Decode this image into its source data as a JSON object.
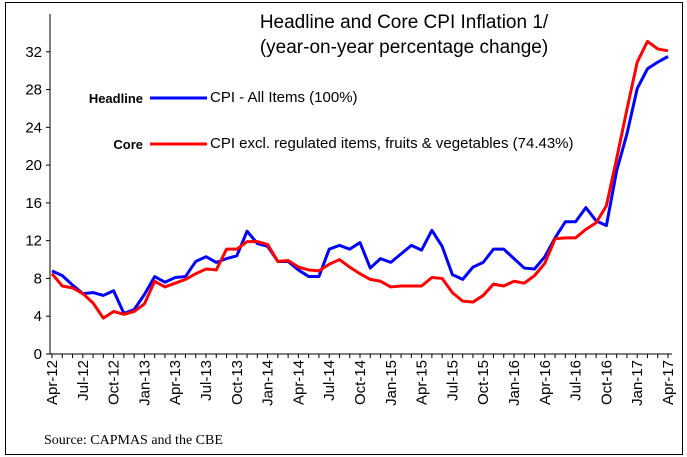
{
  "chart_data": {
    "type": "line",
    "title": "Headline and Core CPI Inflation 1/",
    "subtitle": "(year-on-year percentage change)",
    "source": "Source: CAPMAS and the CBE",
    "categories": [
      "Apr-12",
      null,
      null,
      "Jul-12",
      null,
      null,
      "Oct-12",
      null,
      null,
      "Jan-13",
      null,
      null,
      "Apr-13",
      null,
      null,
      "Jul-13",
      null,
      null,
      "Oct-13",
      null,
      null,
      "Jan-14",
      null,
      null,
      "Apr-14",
      null,
      null,
      "Jul-14",
      null,
      null,
      "Oct-14",
      null,
      null,
      "Jan-15",
      null,
      null,
      "Apr-15",
      null,
      null,
      "Jul-15",
      null,
      null,
      "Oct-15",
      null,
      null,
      "Jan-16",
      null,
      null,
      "Apr-16",
      null,
      null,
      "Jul-16",
      null,
      null,
      "Oct-16",
      null,
      null,
      "Jan-17",
      null,
      null,
      "Apr-17"
    ],
    "series": [
      {
        "label": "Headline",
        "name": "CPI - All Items (100%)",
        "color": "#0000ff",
        "values": [
          8.8,
          8.3,
          7.3,
          6.4,
          6.5,
          6.2,
          6.7,
          4.3,
          4.7,
          6.3,
          8.2,
          7.6,
          8.1,
          8.2,
          9.8,
          10.3,
          9.7,
          10.1,
          10.4,
          13.0,
          11.7,
          11.4,
          9.8,
          9.8,
          8.9,
          8.2,
          8.2,
          11.1,
          11.5,
          11.1,
          11.8,
          9.1,
          10.1,
          9.7,
          10.6,
          11.5,
          11.0,
          13.1,
          11.4,
          8.4,
          7.9,
          9.2,
          9.7,
          11.1,
          11.1,
          10.1,
          9.1,
          9.0,
          10.3,
          12.3,
          14.0,
          14.0,
          15.5,
          14.1,
          13.6,
          19.4,
          23.3,
          28.1,
          30.2,
          30.9,
          31.5
        ]
      },
      {
        "label": "Core",
        "name": "CPI excl. regulated items, fruits & vegetables (74.43%)",
        "color": "#ff0000",
        "values": [
          8.5,
          7.2,
          7.0,
          6.4,
          5.4,
          3.8,
          4.5,
          4.2,
          4.5,
          5.3,
          7.7,
          7.1,
          7.5,
          7.9,
          8.5,
          9.0,
          8.9,
          11.1,
          11.1,
          11.9,
          11.9,
          11.6,
          9.8,
          9.9,
          9.2,
          8.9,
          8.8,
          9.5,
          10.0,
          9.2,
          8.5,
          7.9,
          7.7,
          7.1,
          7.2,
          7.2,
          7.2,
          8.1,
          8.0,
          6.5,
          5.6,
          5.5,
          6.2,
          7.4,
          7.2,
          7.7,
          7.5,
          8.3,
          9.6,
          12.2,
          12.3,
          12.3,
          13.2,
          13.9,
          15.7,
          20.7,
          25.9,
          30.9,
          33.1,
          32.3,
          32.1
        ]
      }
    ],
    "ylim": [
      0,
      36
    ],
    "yticks": [
      0,
      4,
      8,
      12,
      16,
      20,
      24,
      28,
      32
    ],
    "grid": false
  }
}
